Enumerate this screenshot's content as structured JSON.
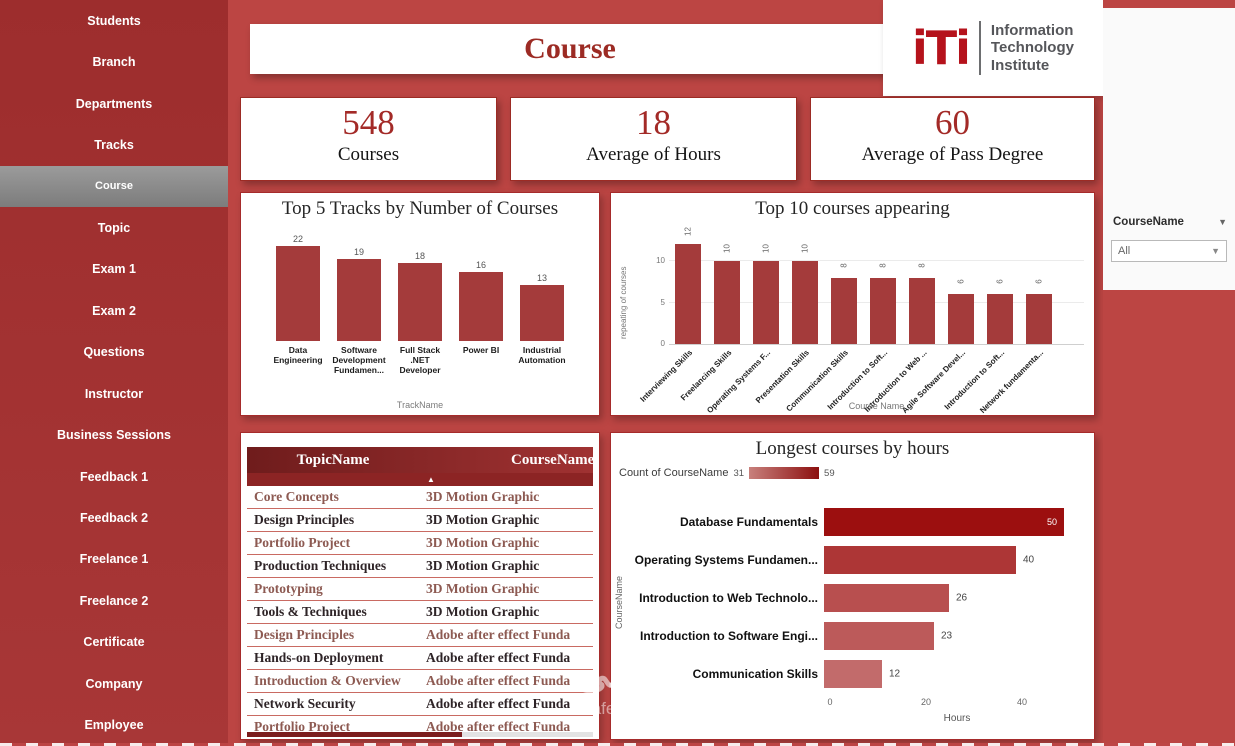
{
  "header": {
    "title": "Course"
  },
  "logo": {
    "mark": "iTi",
    "lines": [
      "Information",
      "Technology",
      "Institute"
    ]
  },
  "sidebar": {
    "items": [
      {
        "label": "Students",
        "selected": false
      },
      {
        "label": "Branch",
        "selected": false
      },
      {
        "label": "Departments",
        "selected": false
      },
      {
        "label": "Tracks",
        "selected": false
      },
      {
        "label": "Course",
        "selected": true
      },
      {
        "label": "Topic",
        "selected": false
      },
      {
        "label": "Exam 1",
        "selected": false
      },
      {
        "label": "Exam 2",
        "selected": false
      },
      {
        "label": "Questions",
        "selected": false
      },
      {
        "label": "Instructor",
        "selected": false
      },
      {
        "label": "Business Sessions",
        "selected": false
      },
      {
        "label": "Feedback 1",
        "selected": false
      },
      {
        "label": "Feedback 2",
        "selected": false
      },
      {
        "label": "Freelance 1",
        "selected": false
      },
      {
        "label": "Freelance 2",
        "selected": false
      },
      {
        "label": "Certificate",
        "selected": false
      },
      {
        "label": "Company",
        "selected": false
      },
      {
        "label": "Employee",
        "selected": false
      }
    ]
  },
  "kpis": [
    {
      "value": "548",
      "label": "Courses"
    },
    {
      "value": "18",
      "label": "Average of Hours"
    },
    {
      "value": "60",
      "label": "Average of Pass Degree"
    }
  ],
  "filter_pane": {
    "field": "CourseName",
    "value": "All"
  },
  "watermark": {
    "arabic": "نفذلي",
    "domain": "nafezly.com"
  },
  "chart_data": [
    {
      "type": "bar",
      "title": "Top 5 Tracks by Number of Courses",
      "categories": [
        "Data Engineering",
        "Software Development Fundamen...",
        "Full Stack .NET Developer",
        "Power BI",
        "Industrial Automation"
      ],
      "values": [
        22,
        19,
        18,
        16,
        13
      ],
      "xlabel": "TrackName",
      "ylabel": "",
      "ylim": [
        0,
        22
      ],
      "bar_color": "#a43b3b"
    },
    {
      "type": "bar",
      "title": "Top 10 courses appearing",
      "categories": [
        "Interviewing Skills",
        "Freelancing Skills",
        "Operating Systems F...",
        "Presentation Skills",
        "Communication Skills",
        "Introduction to Soft...",
        "Introduction to Web ...",
        "Agile Software Devel...",
        "Introduction to Soft...",
        "Network fundamenta..."
      ],
      "values": [
        12,
        10,
        10,
        10,
        8,
        8,
        8,
        6,
        6,
        6
      ],
      "xlabel": "Course Name",
      "ylabel": "repeating of courses",
      "yticks": [
        0,
        5,
        10
      ],
      "ylim": [
        0,
        13
      ],
      "bar_color": "#a43b3b"
    },
    {
      "type": "table",
      "columns": [
        "TopicName",
        "CourseName"
      ],
      "rows": [
        [
          "Core Concepts",
          "3D Motion Graphic"
        ],
        [
          "Design Principles",
          "3D Motion Graphic"
        ],
        [
          "Portfolio Project",
          "3D Motion Graphic"
        ],
        [
          "Production Techniques",
          "3D Motion Graphic"
        ],
        [
          "Prototyping",
          "3D Motion Graphic"
        ],
        [
          "Tools & Techniques",
          "3D Motion Graphic"
        ],
        [
          "Design Principles",
          "Adobe after effect Funda"
        ],
        [
          "Hands-on Deployment",
          "Adobe after effect Funda"
        ],
        [
          "Introduction & Overview",
          "Adobe after effect Funda"
        ],
        [
          "Network Security",
          "Adobe after effect Funda"
        ],
        [
          "Portfolio Project",
          "Adobe after effect Funda"
        ]
      ]
    },
    {
      "type": "bar",
      "orientation": "horizontal",
      "title": "Longest courses by hours",
      "legend": {
        "label": "Count of CourseName",
        "min": 31,
        "max": 59
      },
      "categories": [
        "Database Fundamentals",
        "Operating Systems Fundamen...",
        "Introduction to Web Technolo...",
        "Introduction to Software Engi...",
        "Communication Skills"
      ],
      "values": [
        50,
        40,
        26,
        23,
        12
      ],
      "xlabel": "Hours",
      "ylabel": "CourseName",
      "xticks": [
        0,
        20,
        40
      ],
      "xlim": [
        0,
        54
      ],
      "bar_colors": [
        "#9c0f0f",
        "#ad3636",
        "#b84f4f",
        "#bc5a5a",
        "#c26b6b"
      ]
    }
  ]
}
